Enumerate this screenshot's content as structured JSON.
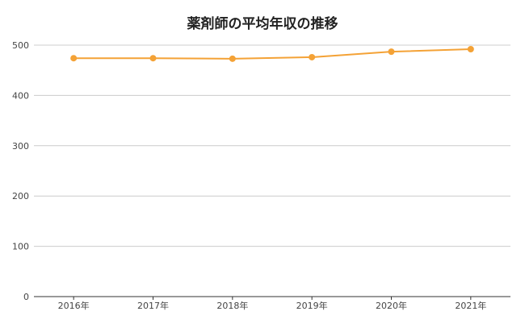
{
  "chart_data": {
    "type": "line",
    "title": "薬剤師の平均年収の推移",
    "xlabel": "",
    "ylabel": "",
    "categories": [
      "2016年",
      "2017年",
      "2018年",
      "2019年",
      "2020年",
      "2021年"
    ],
    "series": [
      {
        "values": [
          474,
          474,
          473,
          476,
          487,
          492
        ]
      }
    ],
    "ylim": [
      0,
      500
    ],
    "yticks": [
      0,
      100,
      200,
      300,
      400,
      500
    ],
    "grid": true,
    "legend": "none",
    "line_color": "#f4a236",
    "gridline_color": "#cccccc",
    "axis_color": "#333333"
  }
}
